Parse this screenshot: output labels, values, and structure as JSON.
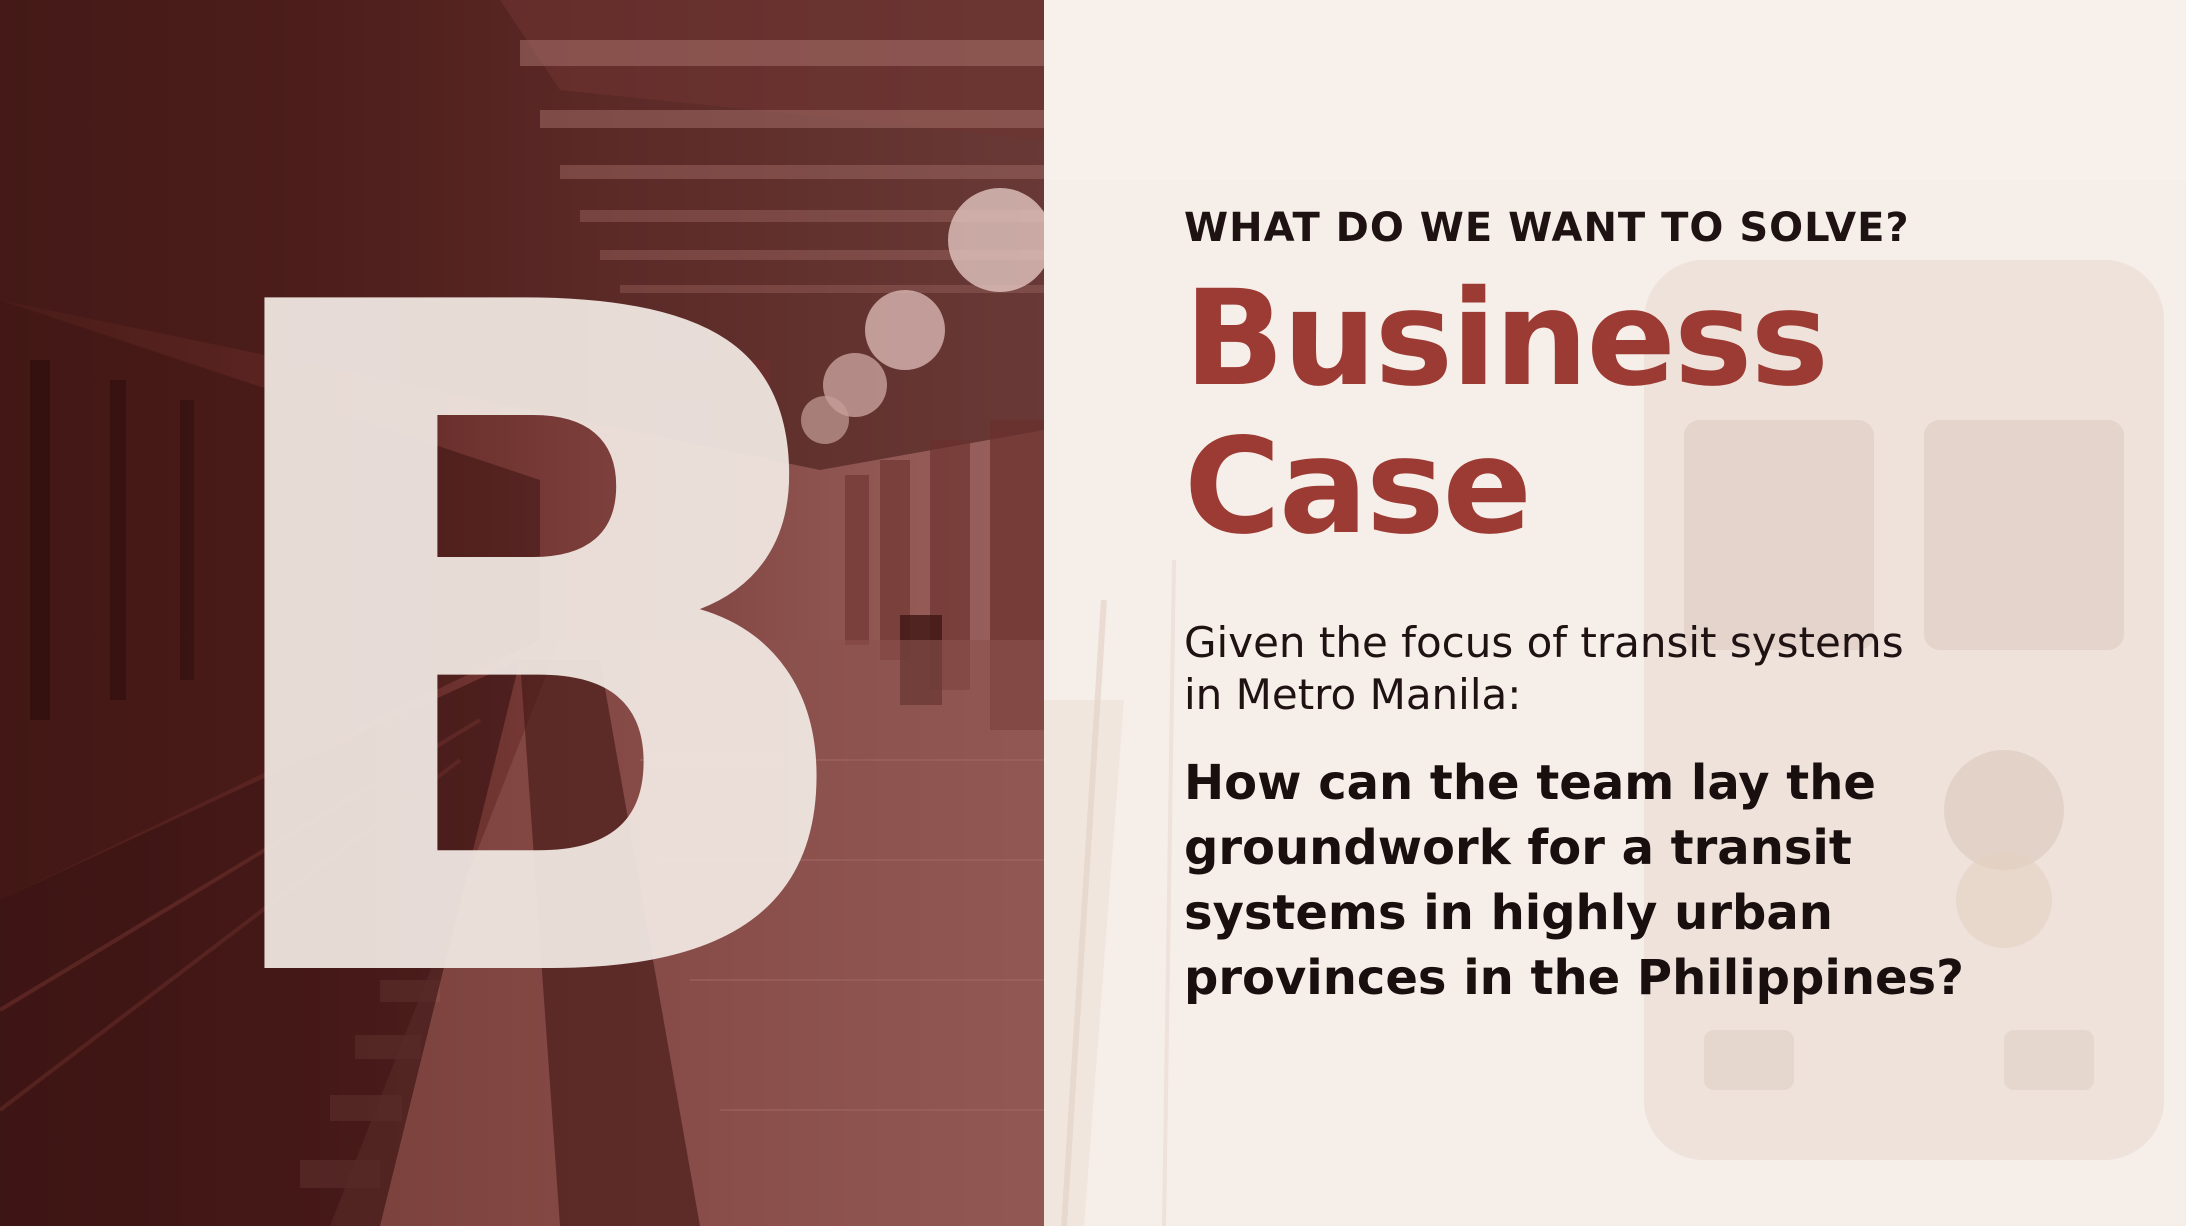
{
  "slide": {
    "big_letter": "B",
    "kicker": "WHAT DO WE WANT TO SOLVE?",
    "title_line1": "Business",
    "title_line2": "Case",
    "intro_line1": "Given the focus of transit systems",
    "intro_line2": "in Metro Manila:",
    "question_line1": "How can the team lay the",
    "question_line2": "groundwork for a transit",
    "question_line3": "systems in highly urban",
    "question_line4": "provinces in the Philippines?"
  },
  "colors": {
    "accent": "#9c3b34",
    "text_dark": "#1e1212",
    "panel_dark": "#4a1c19",
    "panel_light": "#f6eee8"
  }
}
